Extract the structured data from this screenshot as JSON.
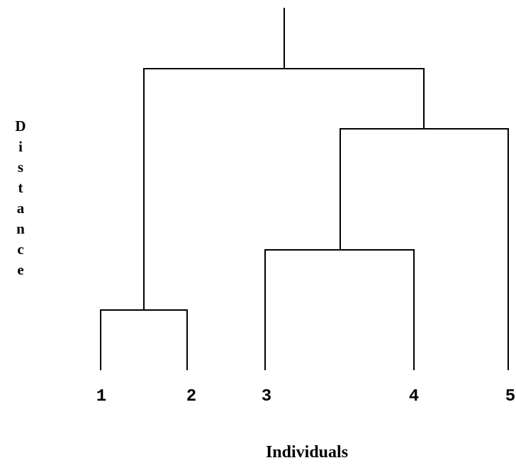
{
  "chart_data": {
    "type": "dendrogram",
    "ylabel": "Distance",
    "ylabel_chars": [
      "D",
      "i",
      "s",
      "t",
      "a",
      "n",
      "c",
      "e"
    ],
    "xlabel": "Individuals",
    "leaves": [
      "1",
      "2",
      "3",
      "4",
      "5"
    ],
    "merges": [
      {
        "left": "1",
        "right": "2",
        "height": 1.0
      },
      {
        "left": "3",
        "right": "4",
        "height": 2.0
      },
      {
        "left": "(3,4)",
        "right": "5",
        "height": 4.0
      },
      {
        "left": "(1,2)",
        "right": "((3,4),5)",
        "height": 5.0
      }
    ]
  }
}
